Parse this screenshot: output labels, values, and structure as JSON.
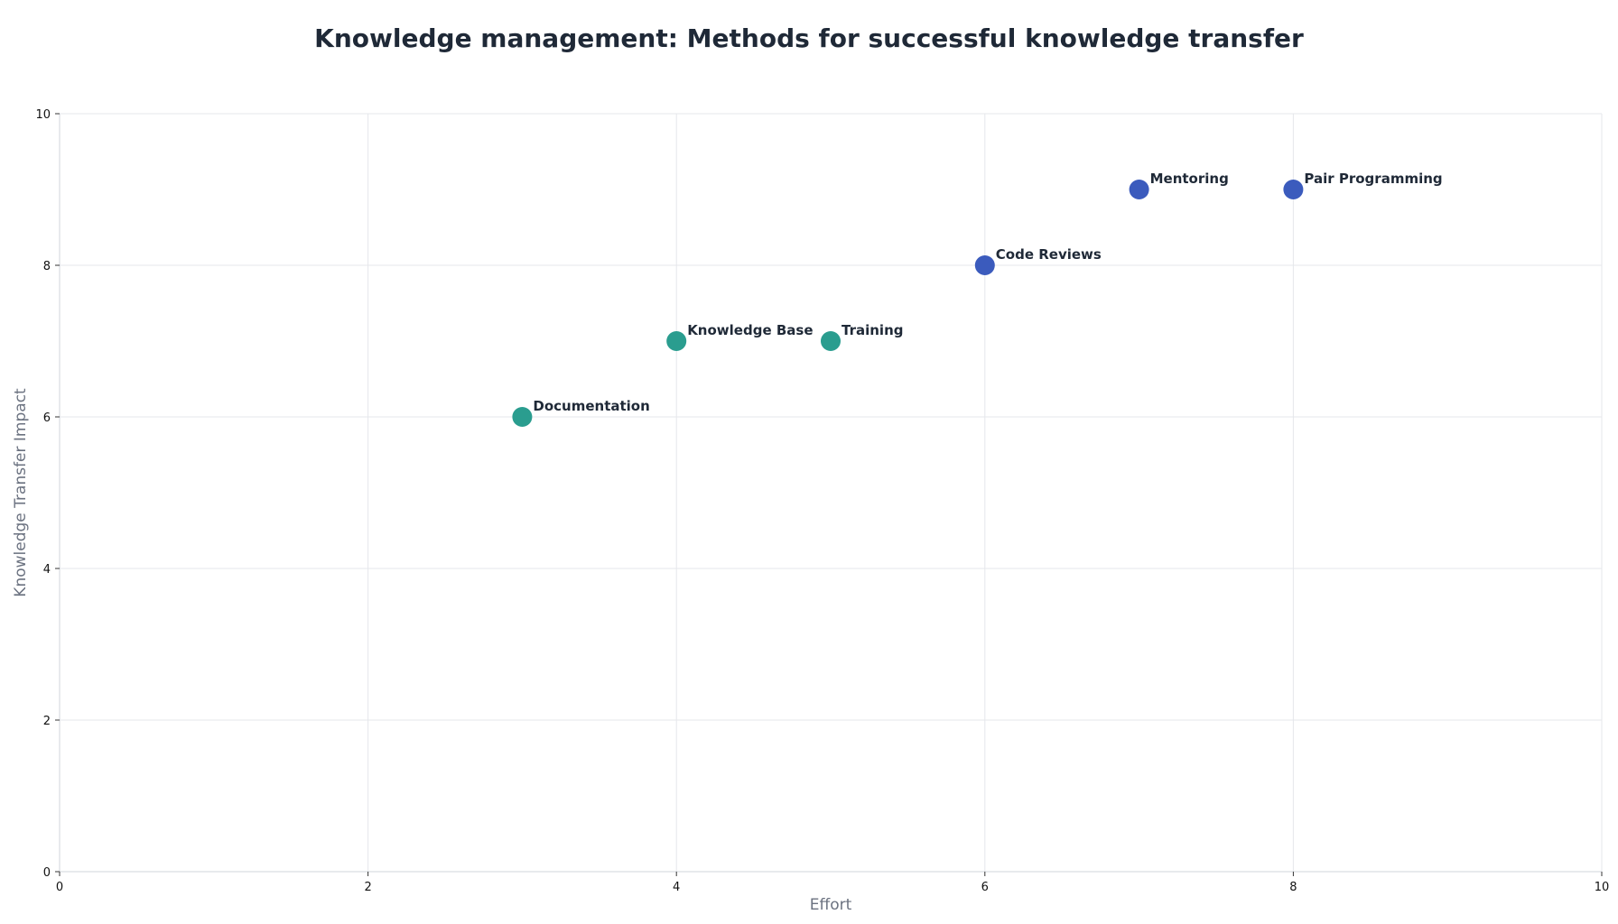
{
  "chart_data": {
    "type": "scatter",
    "title": "Knowledge management: Methods for successful knowledge transfer",
    "xlabel": "Effort",
    "ylabel": "Knowledge Transfer Impact",
    "xlim": [
      0,
      10
    ],
    "ylim": [
      0,
      10
    ],
    "xticks": [
      0,
      2,
      4,
      6,
      8,
      10
    ],
    "yticks": [
      0,
      2,
      4,
      6,
      8,
      10
    ],
    "grid": true,
    "legend": "none",
    "colors": {
      "teal": "#2a9d8f",
      "blue": "#3b5bbd",
      "grid": "#e5e7eb",
      "axis": "#d1d5db"
    },
    "points": [
      {
        "label": "Documentation",
        "x": 3,
        "y": 6,
        "color": "#2a9d8f"
      },
      {
        "label": "Knowledge Base",
        "x": 4,
        "y": 7,
        "color": "#2a9d8f"
      },
      {
        "label": "Training",
        "x": 5,
        "y": 7,
        "color": "#2a9d8f"
      },
      {
        "label": "Code Reviews",
        "x": 6,
        "y": 8,
        "color": "#3b5bbd"
      },
      {
        "label": "Mentoring",
        "x": 7,
        "y": 9,
        "color": "#3b5bbd"
      },
      {
        "label": "Pair Programming",
        "x": 8,
        "y": 9,
        "color": "#3b5bbd"
      }
    ]
  }
}
